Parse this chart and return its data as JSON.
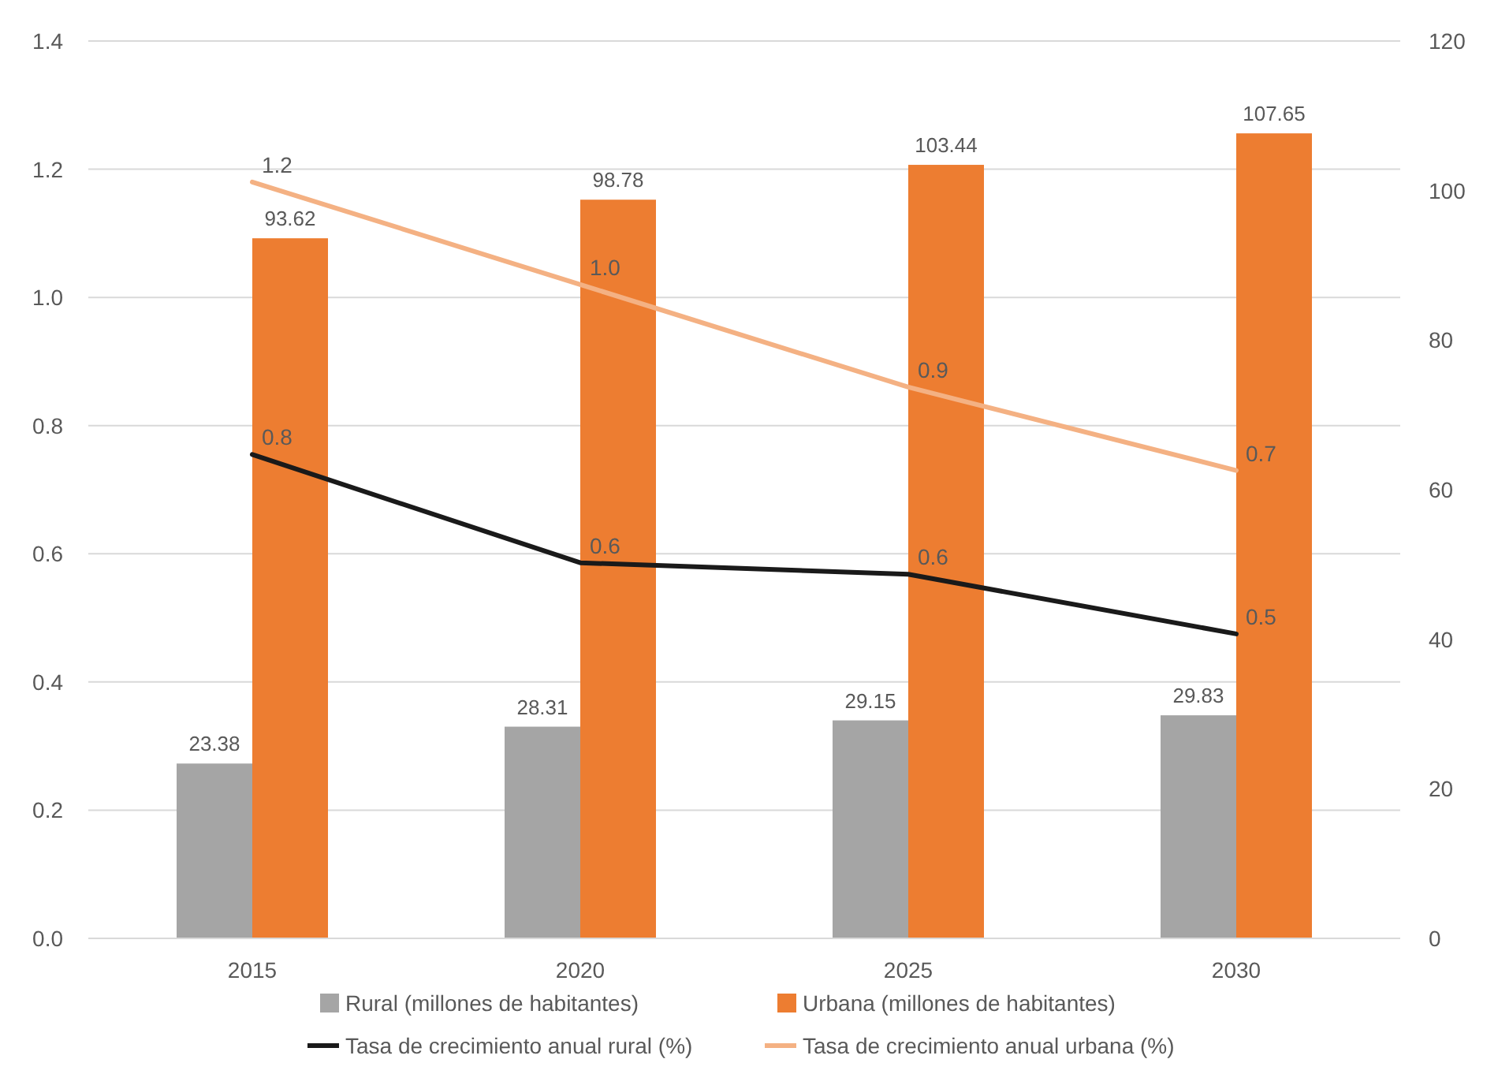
{
  "chart_data": {
    "type": "bar",
    "categories": [
      "2015",
      "2020",
      "2025",
      "2030"
    ],
    "series": [
      {
        "name": "Rural (millones de habitantes)",
        "axis": "y2",
        "color": "#a5a5a5",
        "values": [
          23.38,
          28.31,
          29.15,
          29.83
        ],
        "data_labels": true
      },
      {
        "name": "Urbana (millones de habitantes)",
        "axis": "y2",
        "color": "#ed7d31",
        "values": [
          93.62,
          98.78,
          103.44,
          107.65
        ],
        "data_labels": true
      },
      {
        "name": "Tasa de crecimiento anual rural (%)",
        "type": "line",
        "color": "#1a1a1a",
        "values": [
          0.755,
          0.586,
          0.568,
          0.475
        ],
        "value_labels": [
          "0.8",
          "0.6",
          "0.6",
          "0.5"
        ]
      },
      {
        "name": "Tasa de crecimiento anual urbana (%)",
        "type": "line",
        "color": "#f4b183",
        "values": [
          1.18,
          1.02,
          0.86,
          0.73
        ],
        "value_labels": [
          "1.2",
          "1.0",
          "0.9",
          "0.7"
        ]
      }
    ],
    "ylim": [
      0,
      1.4
    ],
    "yticks": [
      {
        "value": 0,
        "label": "0.0"
      },
      {
        "value": 0.2,
        "label": "0.2"
      },
      {
        "value": 0.4,
        "label": "0.4"
      },
      {
        "value": 0.6,
        "label": "0.6"
      },
      {
        "value": 0.8,
        "label": "0.8"
      },
      {
        "value": 1,
        "label": "1.0"
      },
      {
        "value": 1.2,
        "label": "1.2"
      },
      {
        "value": 1.4,
        "label": "1.4"
      }
    ],
    "y2lim": [
      0,
      120
    ],
    "y2ticks": [
      0,
      20,
      40,
      60,
      80,
      100,
      120
    ],
    "grid": "y",
    "legend": "bottom",
    "marker": "none",
    "line_style": "solid"
  }
}
